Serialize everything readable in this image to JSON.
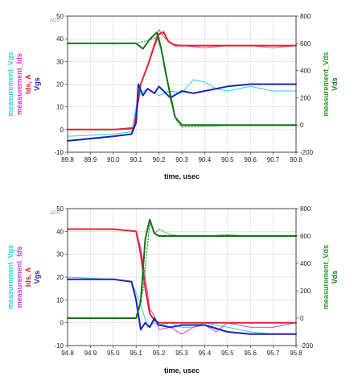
{
  "chart_data": [
    {
      "type": "line",
      "tag": "ADS",
      "xlabel": "time, usec",
      "xlim": [
        89.8,
        90.8
      ],
      "x_ticks": [
        "89.8",
        "89.9",
        "90.0",
        "90.1",
        "90.2",
        "90.3",
        "90.4",
        "90.5",
        "90.6",
        "90.7",
        "90.8"
      ],
      "ylim_left": [
        -10,
        50
      ],
      "y_ticks_left": [
        "-10",
        "0",
        "10",
        "20",
        "30",
        "40",
        "50"
      ],
      "ylim_right": [
        -200,
        800
      ],
      "y_ticks_right": [
        "-200",
        "0",
        "200",
        "400",
        "600",
        "800"
      ],
      "ylabels_left": [
        {
          "text": "measurement_Vgs",
          "color": "#29d3dc"
        },
        {
          "text": "measurement_Ids",
          "color": "#d23ad2"
        },
        {
          "text": "Ids, A",
          "color": "#e0252e"
        },
        {
          "text": "Vgs",
          "color": "#1a22b8"
        }
      ],
      "ylabels_right": [
        {
          "text": "measurement_Vds",
          "color": "#1e9a1e"
        },
        {
          "text": "Vds",
          "color": "#147214"
        }
      ],
      "grid": true,
      "series": [
        {
          "name": "measurement_Vgs",
          "axis": "left",
          "color": "#29d3dc",
          "width": 1,
          "dash": "",
          "x": [
            89.8,
            90.0,
            90.08,
            90.1,
            90.12,
            90.15,
            90.2,
            90.25,
            90.3,
            90.35,
            90.4,
            90.45,
            90.5,
            90.6,
            90.7,
            90.8
          ],
          "y": [
            -3,
            -2,
            -1,
            10,
            16,
            18,
            15,
            17,
            16,
            22,
            21,
            18,
            17,
            19,
            17,
            17
          ]
        },
        {
          "name": "measurement_Ids",
          "axis": "left",
          "color": "#d23ad2",
          "width": 1,
          "dash": "",
          "x": [
            89.8,
            90.0,
            90.09,
            90.12,
            90.15,
            90.18,
            90.2,
            90.22,
            90.25,
            90.3,
            90.4,
            90.5,
            90.6,
            90.7,
            90.8
          ],
          "y": [
            0,
            0,
            1,
            20,
            28,
            38,
            44,
            41,
            38,
            37,
            36,
            37,
            37,
            36,
            37
          ]
        },
        {
          "name": "Ids, A",
          "axis": "left",
          "color": "#e0252e",
          "width": 2,
          "dash": "",
          "x": [
            89.8,
            90.0,
            90.09,
            90.12,
            90.15,
            90.18,
            90.2,
            90.22,
            90.24,
            90.27,
            90.3,
            90.4,
            90.5,
            90.6,
            90.7,
            90.8
          ],
          "y": [
            0,
            0,
            0.5,
            20,
            28,
            37,
            42,
            43,
            39,
            37,
            37,
            37,
            37,
            37,
            37,
            37
          ]
        },
        {
          "name": "Vgs",
          "axis": "left",
          "color": "#1a22b8",
          "width": 2,
          "dash": "",
          "x": [
            89.8,
            90.0,
            90.08,
            90.1,
            90.11,
            90.13,
            90.15,
            90.18,
            90.2,
            90.25,
            90.3,
            90.35,
            90.4,
            90.5,
            90.6,
            90.7,
            90.8
          ],
          "y": [
            -5,
            -3,
            -2,
            3,
            20,
            15,
            18,
            16,
            19,
            14,
            17,
            16,
            17,
            19,
            20,
            20,
            20
          ]
        },
        {
          "name": "measurement_Vds",
          "axis": "right",
          "color": "#1e9a1e",
          "width": 1,
          "dash": "2,2",
          "x": [
            89.8,
            90.1,
            90.15,
            90.2,
            90.23,
            90.25,
            90.28,
            90.3,
            90.4,
            90.5,
            90.6,
            90.7,
            90.8
          ],
          "y": [
            600,
            600,
            620,
            650,
            400,
            180,
            20,
            -15,
            -10,
            -5,
            -5,
            -5,
            -5
          ]
        },
        {
          "name": "Vds",
          "axis": "right",
          "color": "#147214",
          "width": 2,
          "dash": "",
          "x": [
            89.8,
            90.1,
            90.13,
            90.16,
            90.19,
            90.21,
            90.23,
            90.25,
            90.27,
            90.3,
            90.4,
            90.5,
            90.6,
            90.7,
            90.8
          ],
          "y": [
            600,
            600,
            560,
            630,
            680,
            560,
            380,
            220,
            60,
            0,
            0,
            0,
            0,
            0,
            0
          ]
        }
      ]
    },
    {
      "type": "line",
      "tag": "ADS",
      "xlabel": "time, usec",
      "xlim": [
        94.8,
        95.8
      ],
      "x_ticks": [
        "94.8",
        "94.9",
        "95.0",
        "95.1",
        "95.2",
        "95.3",
        "95.4",
        "95.5",
        "95.6",
        "95.7",
        "95.8"
      ],
      "ylim_left": [
        -10,
        50
      ],
      "y_ticks_left": [
        "-10",
        "0",
        "10",
        "20",
        "30",
        "40",
        "50"
      ],
      "ylim_right": [
        -200,
        800
      ],
      "y_ticks_right": [
        "-200",
        "0",
        "200",
        "400",
        "600",
        "800"
      ],
      "ylabels_left": [
        {
          "text": "measurement_Vgs",
          "color": "#29d3dc"
        },
        {
          "text": "measurement_Ids",
          "color": "#d23ad2"
        },
        {
          "text": "Ids, A",
          "color": "#e0252e"
        },
        {
          "text": "Vgs",
          "color": "#1a22b8"
        }
      ],
      "ylabels_right": [
        {
          "text": "measurement_Vds",
          "color": "#1e9a1e"
        },
        {
          "text": "Vds",
          "color": "#147214"
        }
      ],
      "grid": true,
      "series": [
        {
          "name": "measurement_Vgs",
          "axis": "left",
          "color": "#29d3dc",
          "width": 1,
          "dash": "",
          "x": [
            94.8,
            95.0,
            95.08,
            95.12,
            95.15,
            95.18,
            95.2,
            95.25,
            95.3,
            95.35,
            95.4,
            95.5,
            95.6,
            95.7,
            95.8
          ],
          "y": [
            20,
            19,
            18,
            8,
            -2,
            0,
            -1,
            0,
            -2,
            -2,
            0,
            -2,
            -4,
            -5,
            -5
          ]
        },
        {
          "name": "measurement_Ids",
          "axis": "left",
          "color": "#d23ad2",
          "width": 1,
          "dash": "",
          "x": [
            94.8,
            95.0,
            95.1,
            95.12,
            95.14,
            95.16,
            95.18,
            95.2,
            95.25,
            95.3,
            95.35,
            95.4,
            95.45,
            95.5,
            95.6,
            95.7,
            95.8
          ],
          "y": [
            41,
            41,
            40,
            33,
            20,
            6,
            3,
            -3,
            -2,
            -5,
            -2,
            -1,
            -4,
            0,
            -2,
            -2,
            0
          ]
        },
        {
          "name": "Ids, A",
          "axis": "left",
          "color": "#e0252e",
          "width": 2,
          "dash": "",
          "x": [
            94.8,
            95.0,
            95.1,
            95.12,
            95.14,
            95.16,
            95.18,
            95.2,
            95.25,
            95.3,
            95.4,
            95.5,
            95.6,
            95.7,
            95.8
          ],
          "y": [
            41,
            41,
            40,
            30,
            15,
            4,
            1,
            0,
            0,
            0,
            0,
            0,
            0,
            0,
            0
          ]
        },
        {
          "name": "Vgs",
          "axis": "left",
          "color": "#1a22b8",
          "width": 2,
          "dash": "",
          "x": [
            94.8,
            95.0,
            95.08,
            95.1,
            95.12,
            95.14,
            95.16,
            95.18,
            95.2,
            95.25,
            95.3,
            95.4,
            95.5,
            95.6,
            95.7,
            95.8
          ],
          "y": [
            19,
            19,
            18,
            10,
            -3,
            0,
            -2,
            2,
            -1,
            -2,
            -1,
            -1,
            -4,
            -5,
            -5,
            -5
          ]
        },
        {
          "name": "measurement_Vds",
          "axis": "right",
          "color": "#1e9a1e",
          "width": 1,
          "dash": "2,2",
          "x": [
            94.8,
            95.0,
            95.1,
            95.13,
            95.16,
            95.18,
            95.2,
            95.25,
            95.3,
            95.4,
            95.5,
            95.6,
            95.7,
            95.8
          ],
          "y": [
            0,
            0,
            0,
            200,
            700,
            620,
            650,
            610,
            600,
            600,
            610,
            600,
            600,
            600
          ]
        },
        {
          "name": "Vds",
          "axis": "right",
          "color": "#147214",
          "width": 2,
          "dash": "",
          "x": [
            94.8,
            95.0,
            95.1,
            95.12,
            95.14,
            95.16,
            95.18,
            95.2,
            95.25,
            95.3,
            95.4,
            95.5,
            95.6,
            95.7,
            95.8
          ],
          "y": [
            0,
            0,
            0,
            120,
            580,
            720,
            620,
            600,
            600,
            600,
            600,
            600,
            600,
            600,
            600
          ]
        }
      ]
    }
  ]
}
